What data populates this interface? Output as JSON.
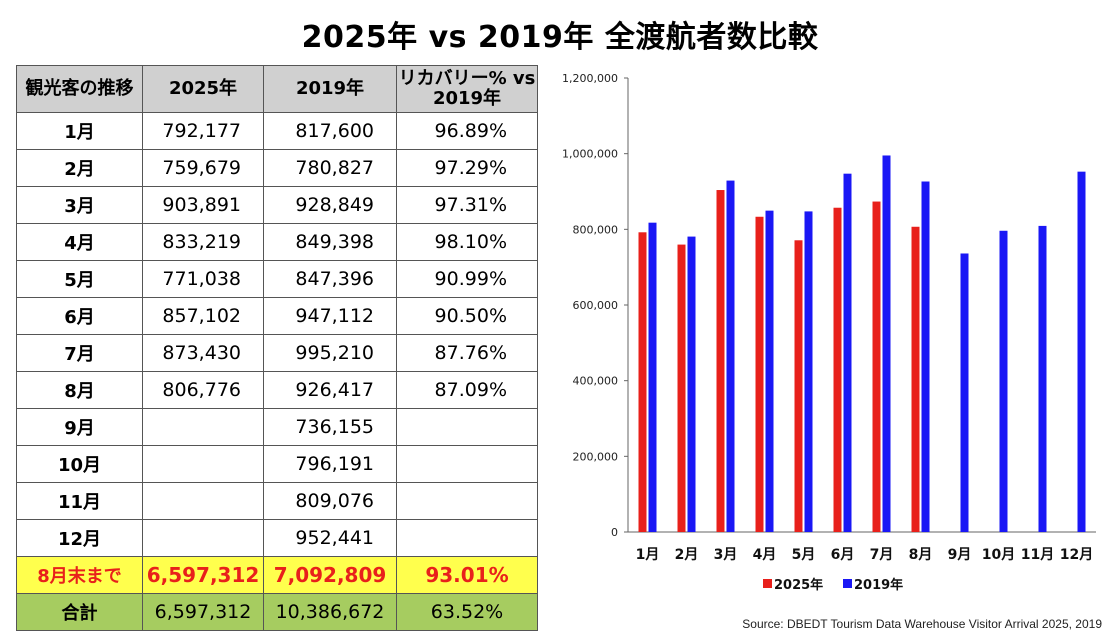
{
  "title": "2025年 vs 2019年 全渡航者数比較",
  "table": {
    "headers": [
      "観光客の推移",
      "2025年",
      "2019年",
      "リカバリー% vs 2019年"
    ],
    "rows": [
      {
        "month": "1月",
        "y2025": "792,177",
        "y2019": "817,600",
        "recovery": "96.89%"
      },
      {
        "month": "2月",
        "y2025": "759,679",
        "y2019": "780,827",
        "recovery": "97.29%"
      },
      {
        "month": "3月",
        "y2025": "903,891",
        "y2019": "928,849",
        "recovery": "97.31%"
      },
      {
        "month": "4月",
        "y2025": "833,219",
        "y2019": "849,398",
        "recovery": "98.10%"
      },
      {
        "month": "5月",
        "y2025": "771,038",
        "y2019": "847,396",
        "recovery": "90.99%"
      },
      {
        "month": "6月",
        "y2025": "857,102",
        "y2019": "947,112",
        "recovery": "90.50%"
      },
      {
        "month": "7月",
        "y2025": "873,430",
        "y2019": "995,210",
        "recovery": "87.76%"
      },
      {
        "month": "8月",
        "y2025": "806,776",
        "y2019": "926,417",
        "recovery": "87.09%"
      },
      {
        "month": "9月",
        "y2025": "",
        "y2019": "736,155",
        "recovery": ""
      },
      {
        "month": "10月",
        "y2025": "",
        "y2019": "796,191",
        "recovery": ""
      },
      {
        "month": "11月",
        "y2025": "",
        "y2019": "809,076",
        "recovery": ""
      },
      {
        "month": "12月",
        "y2025": "",
        "y2019": "952,441",
        "recovery": ""
      }
    ],
    "ytd": {
      "label": "8月末まで",
      "y2025": "6,597,312",
      "y2019": "7,092,809",
      "recovery": "93.01%"
    },
    "total": {
      "label": "合計",
      "y2025": "6,597,312",
      "y2019": "10,386,672",
      "recovery": "63.52%"
    }
  },
  "colors": {
    "series_2025": "#e8201b",
    "series_2019": "#1a17f5",
    "ytd_bg": "#ffff4d",
    "total_bg": "#a6cc60",
    "header_bg": "#d0d0d0"
  },
  "source": "Source: DBEDT Tourism Data Warehouse Visitor Arrival 2025, 2019",
  "chart_data": {
    "type": "bar",
    "categories": [
      "1月",
      "2月",
      "3月",
      "4月",
      "5月",
      "6月",
      "7月",
      "8月",
      "9月",
      "10月",
      "11月",
      "12月"
    ],
    "series": [
      {
        "name": "2025年",
        "values": [
          792177,
          759679,
          903891,
          833219,
          771038,
          857102,
          873430,
          806776,
          null,
          null,
          null,
          null
        ]
      },
      {
        "name": "2019年",
        "values": [
          817600,
          780827,
          928849,
          849398,
          847396,
          947112,
          995210,
          926417,
          736155,
          796191,
          809076,
          952441
        ]
      }
    ],
    "ylim": [
      0,
      1200000
    ],
    "yticks": [
      0,
      200000,
      400000,
      600000,
      800000,
      1000000,
      1200000
    ],
    "ytick_labels": [
      "0",
      "200,000",
      "400,000",
      "600,000",
      "800,000",
      "1,000,000",
      "1,200,000"
    ],
    "grid": false,
    "legend": "bottom",
    "title": "",
    "xlabel": "",
    "ylabel": ""
  }
}
